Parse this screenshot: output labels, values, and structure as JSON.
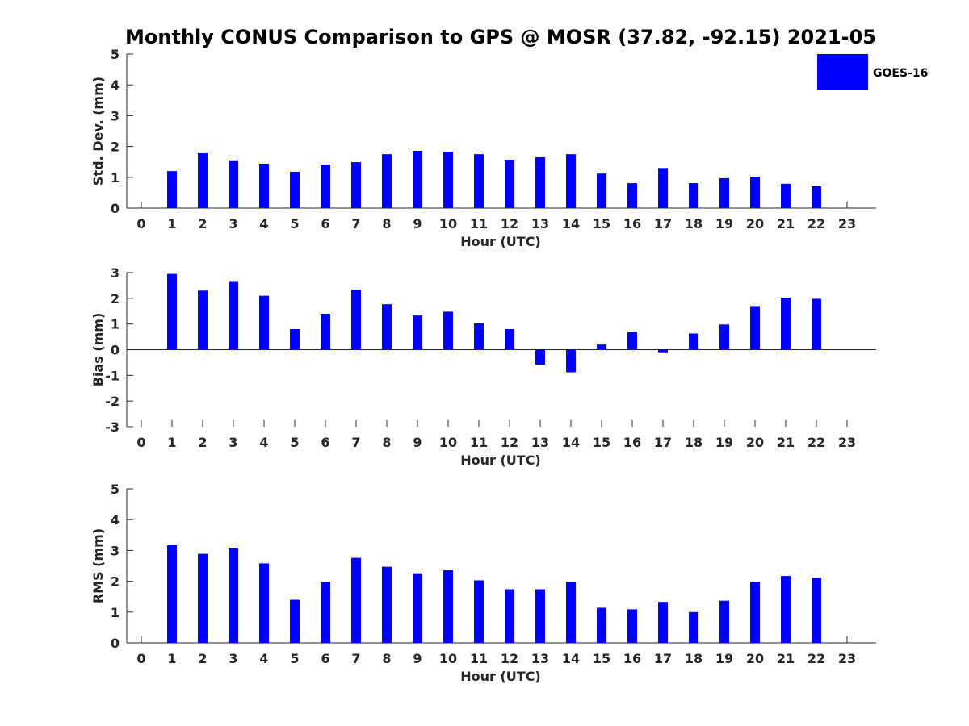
{
  "title": "Monthly CONUS Comparison to GPS @ MOSR (37.82, -92.15) 2021-05",
  "legend": {
    "label": "GOES-16",
    "color": "#0000ff"
  },
  "chart_data": [
    {
      "type": "bar",
      "name": "std-dev",
      "xlabel": "Hour (UTC)",
      "ylabel": "Std. Dev. (mm)",
      "ylim": [
        0,
        5
      ],
      "yticks": [
        "0",
        "1",
        "2",
        "3",
        "4",
        "5"
      ],
      "categories": [
        "0",
        "1",
        "2",
        "3",
        "4",
        "5",
        "6",
        "7",
        "8",
        "9",
        "10",
        "11",
        "12",
        "13",
        "14",
        "15",
        "16",
        "17",
        "18",
        "19",
        "20",
        "21",
        "22",
        "23"
      ],
      "series": [
        {
          "name": "GOES-16",
          "values": [
            null,
            1.2,
            1.78,
            1.55,
            1.44,
            1.18,
            1.41,
            1.49,
            1.75,
            1.86,
            1.83,
            1.75,
            1.57,
            1.65,
            1.75,
            1.12,
            0.81,
            1.3,
            0.81,
            0.97,
            1.02,
            0.79,
            0.71,
            null
          ]
        }
      ]
    },
    {
      "type": "bar",
      "name": "bias",
      "xlabel": "Hour (UTC)",
      "ylabel": "Bias (mm)",
      "ylim": [
        -3,
        3
      ],
      "yticks": [
        "-3",
        "-2",
        "-1",
        "0",
        "1",
        "2",
        "3"
      ],
      "categories": [
        "0",
        "1",
        "2",
        "3",
        "4",
        "5",
        "6",
        "7",
        "8",
        "9",
        "10",
        "11",
        "12",
        "13",
        "14",
        "15",
        "16",
        "17",
        "18",
        "19",
        "20",
        "21",
        "22",
        "23"
      ],
      "series": [
        {
          "name": "GOES-16",
          "values": [
            null,
            2.95,
            2.3,
            2.67,
            2.1,
            0.8,
            1.4,
            2.33,
            1.77,
            1.33,
            1.48,
            1.02,
            0.8,
            -0.58,
            -0.88,
            0.2,
            0.7,
            -0.1,
            0.63,
            0.98,
            1.7,
            2.02,
            1.98,
            null
          ]
        }
      ]
    },
    {
      "type": "bar",
      "name": "rms",
      "xlabel": "Hour (UTC)",
      "ylabel": "RMS (mm)",
      "ylim": [
        0,
        5
      ],
      "yticks": [
        "0",
        "1",
        "2",
        "3",
        "4",
        "5"
      ],
      "categories": [
        "0",
        "1",
        "2",
        "3",
        "4",
        "5",
        "6",
        "7",
        "8",
        "9",
        "10",
        "11",
        "12",
        "13",
        "14",
        "15",
        "16",
        "17",
        "18",
        "19",
        "20",
        "21",
        "22",
        "23"
      ],
      "series": [
        {
          "name": "GOES-16",
          "values": [
            null,
            3.17,
            2.89,
            3.09,
            2.58,
            1.4,
            1.98,
            2.76,
            2.47,
            2.26,
            2.36,
            2.03,
            1.74,
            1.74,
            1.98,
            1.14,
            1.09,
            1.33,
            1.0,
            1.37,
            1.98,
            2.17,
            2.11,
            null
          ]
        }
      ]
    }
  ]
}
